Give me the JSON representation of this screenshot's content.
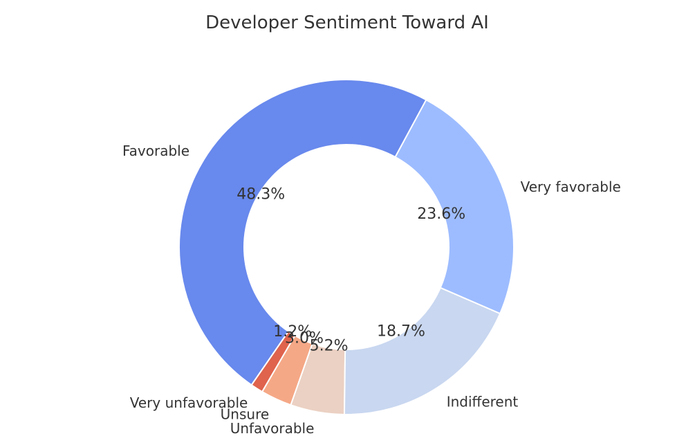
{
  "chart_data": {
    "type": "pie",
    "title": "Developer Sentiment Toward AI",
    "donut": true,
    "categories": [
      "Very favorable",
      "Favorable",
      "Very unfavorable",
      "Unsure",
      "Unfavorable",
      "Indifferent"
    ],
    "values": [
      23.6,
      48.3,
      1.2,
      3.0,
      5.2,
      18.7
    ],
    "value_labels": [
      "23.6%",
      "48.3%",
      "1.2%",
      "3.0%",
      "5.2%",
      "18.7%"
    ],
    "colors": [
      "#9dbcff",
      "#6889ed",
      "#df634d",
      "#f5a886",
      "#ebd1c3",
      "#c9d7f0"
    ]
  }
}
